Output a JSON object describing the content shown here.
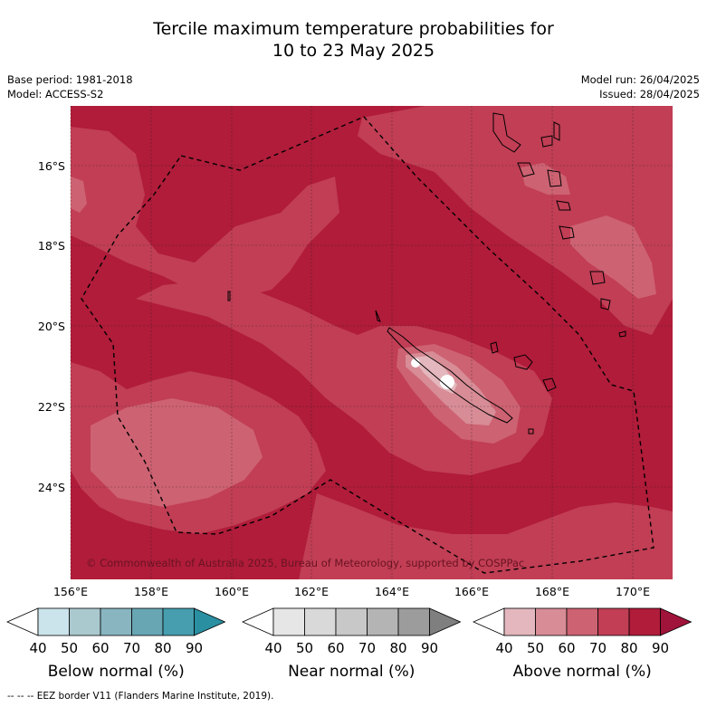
{
  "title": {
    "line1": "Tercile maximum temperature probabilities for",
    "line2": "10 to 23 May 2025"
  },
  "meta_left": {
    "base_period": "Base period: 1981-2018",
    "model": "Model: ACCESS-S2"
  },
  "meta_right": {
    "model_run": "Model run: 26/04/2025",
    "issued": "Issued: 28/04/2025"
  },
  "map": {
    "lat_labels": [
      "16°S",
      "18°S",
      "20°S",
      "22°S",
      "24°S"
    ],
    "lon_labels": [
      "156°E",
      "158°E",
      "160°E",
      "162°E",
      "164°E",
      "166°E",
      "168°E",
      "170°E"
    ],
    "copyright": "© Commonwealth of Australia 2025, Bureau of Meteorology, supported by COSPPac",
    "colors": {
      "above_80_90": "#b01c3a",
      "above_70_80": "#c13e55",
      "above_60_70": "#cd6272",
      "above_50_60": "#d78c96",
      "above_40_50": "#e3b7bd"
    }
  },
  "colorbars": [
    {
      "title": "Below normal (%)",
      "labels": [
        "40",
        "50",
        "60",
        "70",
        "80",
        "90"
      ],
      "colors": [
        "#ffffff",
        "#cbe3ea",
        "#a9c9cf",
        "#88b5c0",
        "#68a6b4",
        "#469eaf",
        "#2a8fa1"
      ]
    },
    {
      "title": "Near normal (%)",
      "labels": [
        "40",
        "50",
        "60",
        "70",
        "80",
        "90"
      ],
      "colors": [
        "#ffffff",
        "#e6e6e6",
        "#d9d9d9",
        "#c8c8c8",
        "#b4b4b4",
        "#9c9c9c",
        "#7f7f7f"
      ]
    },
    {
      "title": "Above normal (%)",
      "labels": [
        "40",
        "50",
        "60",
        "70",
        "80",
        "90"
      ],
      "colors": [
        "#ffffff",
        "#e3b7bd",
        "#d78c96",
        "#cd6272",
        "#c13e55",
        "#b01c3a",
        "#a0133a"
      ]
    }
  ],
  "footer": {
    "legend": "--  --  -- EEZ border V11 (Flanders Marine Institute, 2019)."
  }
}
